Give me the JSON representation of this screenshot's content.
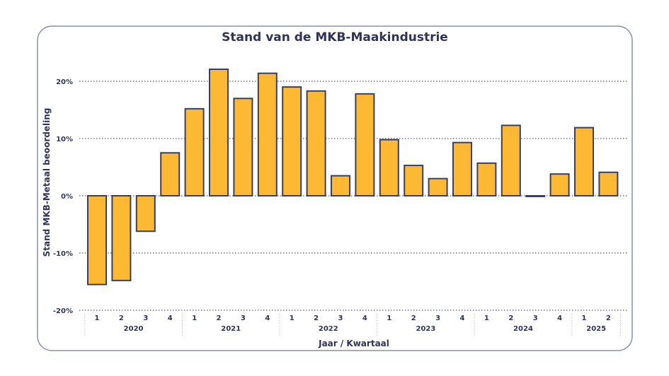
{
  "chart_data": {
    "type": "bar",
    "title": "Stand van de MKB-Maakindustrie",
    "xlabel": "Jaar / Kwartaal",
    "ylabel": "Stand MKB-Metaal beoordeling",
    "ylim": [
      -20,
      20
    ],
    "yticks": [
      -20,
      -10,
      0,
      10,
      20
    ],
    "ytick_labels": [
      "-20%",
      "-10%",
      "0%",
      "10%",
      "20%"
    ],
    "grid": true,
    "years": [
      {
        "label": "2020",
        "quarters": [
          "1",
          "2",
          "3",
          "4"
        ]
      },
      {
        "label": "2021",
        "quarters": [
          "1",
          "2",
          "3",
          "4"
        ]
      },
      {
        "label": "2022",
        "quarters": [
          "1",
          "2",
          "3",
          "4"
        ]
      },
      {
        "label": "2023",
        "quarters": [
          "1",
          "2",
          "3",
          "4"
        ]
      },
      {
        "label": "2024",
        "quarters": [
          "1",
          "2",
          "3",
          "4"
        ]
      },
      {
        "label": "2025",
        "quarters": [
          "1",
          "2"
        ]
      }
    ],
    "values": [
      -15.5,
      -14.8,
      -6.2,
      7.5,
      15.2,
      22.1,
      17.0,
      21.4,
      19.0,
      18.3,
      3.5,
      17.8,
      9.8,
      5.3,
      3.0,
      9.3,
      5.7,
      12.3,
      -0.1,
      3.8,
      11.9,
      4.1
    ],
    "colors": {
      "bar": "#FDB933",
      "outline": "#3B3F62",
      "text": "#2F3458",
      "border": "#8C90AE"
    }
  }
}
